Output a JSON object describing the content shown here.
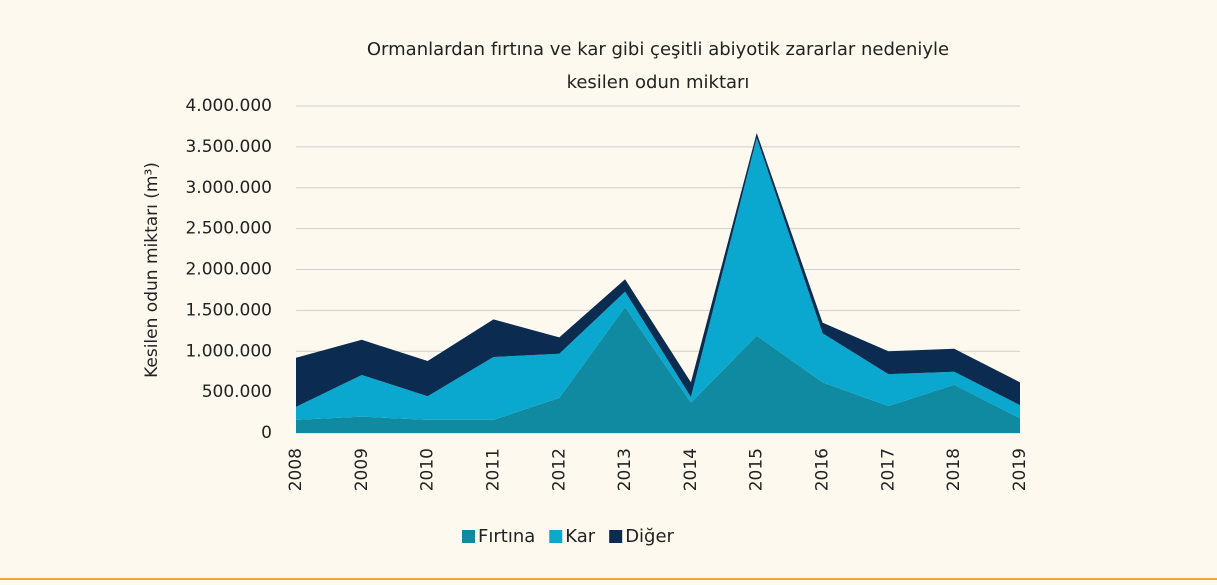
{
  "chart_data": {
    "type": "stacked_area",
    "title": [
      "Ormanlardan fırtına ve kar gibi çeşitli abiyotik zararlar nedeniyle",
      "kesilen odun miktarı"
    ],
    "y_label": "Kesilen odun miktarı (m³)",
    "categories": [
      "2008",
      "2009",
      "2010",
      "2011",
      "2012",
      "2013",
      "2014",
      "2015",
      "2016",
      "2017",
      "2018",
      "2019"
    ],
    "series": [
      {
        "name": "Fırtına",
        "color": "#0f8aa1",
        "values": [
          160000,
          200000,
          160000,
          160000,
          430000,
          1540000,
          370000,
          1190000,
          620000,
          330000,
          590000,
          180000
        ]
      },
      {
        "name": "Kar",
        "color": "#0aa7cf",
        "values": [
          160000,
          510000,
          290000,
          770000,
          540000,
          190000,
          70000,
          2420000,
          600000,
          390000,
          160000,
          160000
        ]
      },
      {
        "name": "Diğer",
        "color": "#0c2b50",
        "values": [
          600000,
          430000,
          430000,
          460000,
          200000,
          150000,
          180000,
          60000,
          130000,
          280000,
          280000,
          280000
        ]
      }
    ],
    "ylim": [
      0,
      4000000
    ],
    "yticks": [
      0,
      {
        "value": 500000,
        "label": "500.000"
      },
      {
        "value": 1000000,
        "label": "1.000.000"
      },
      {
        "value": 1500000,
        "label": "1.500.000"
      },
      {
        "value": 2000000,
        "label": "2.000.000"
      },
      {
        "value": 2500000,
        "label": "2.500.000"
      },
      {
        "value": 3000000,
        "label": "3.000.000"
      },
      {
        "value": 3500000,
        "label": "3.500.000"
      },
      {
        "value": 4000000,
        "label": "4.000.000"
      }
    ],
    "grid": true,
    "legend": "bottom"
  }
}
